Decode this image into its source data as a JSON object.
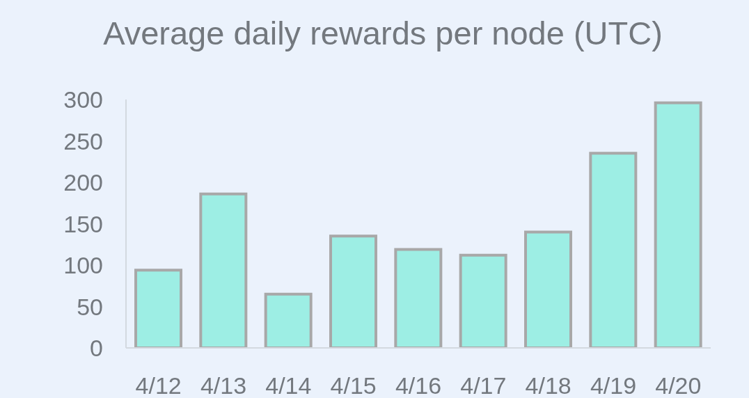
{
  "chart_data": {
    "type": "bar",
    "title": "Average daily rewards per node (UTC)",
    "categories": [
      "4/12",
      "4/13",
      "4/14",
      "4/15",
      "4/16",
      "4/17",
      "4/18",
      "4/19",
      "4/20"
    ],
    "values": [
      94,
      186,
      65,
      135,
      119,
      112,
      140,
      235,
      296
    ],
    "color": "#9deee4",
    "ylim": [
      0,
      300
    ],
    "yticks": [
      0,
      50,
      100,
      150,
      200,
      250,
      300
    ]
  }
}
